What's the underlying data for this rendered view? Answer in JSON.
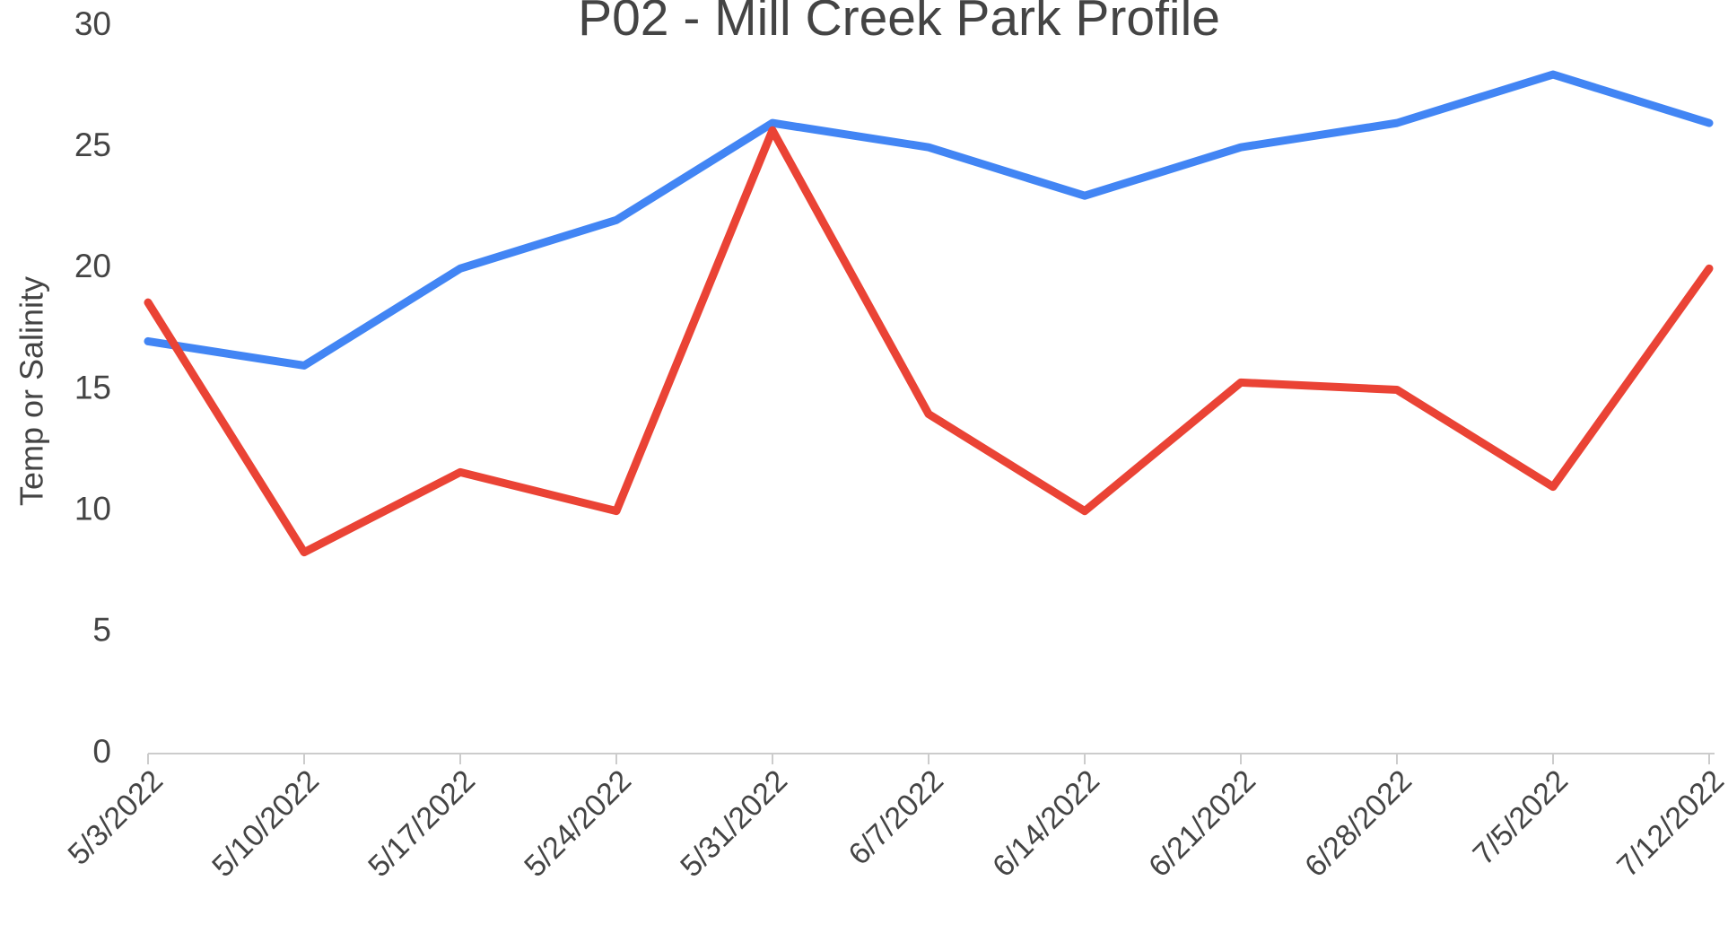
{
  "chart_data": {
    "type": "line",
    "title": "P02 - Mill Creek Park Profile",
    "y_label": "Temp or Salinity",
    "categories": [
      "5/3/2022",
      "5/10/2022",
      "5/17/2022",
      "5/24/2022",
      "5/31/2022",
      "6/7/2022",
      "6/14/2022",
      "6/21/2022",
      "6/28/2022",
      "7/5/2022",
      "7/12/2022"
    ],
    "series": [
      {
        "color": "#4285f4",
        "values": [
          17,
          16,
          20,
          22,
          26,
          25,
          23,
          25,
          26,
          28,
          26
        ]
      },
      {
        "color": "#ea4335",
        "values": [
          18.6,
          8.3,
          11.6,
          10,
          25.7,
          14,
          10,
          15.3,
          15,
          11,
          20
        ]
      }
    ],
    "ylim": [
      0,
      30
    ],
    "yticks": [
      0,
      5,
      10,
      15,
      20,
      25,
      30
    ],
    "grid": false
  }
}
